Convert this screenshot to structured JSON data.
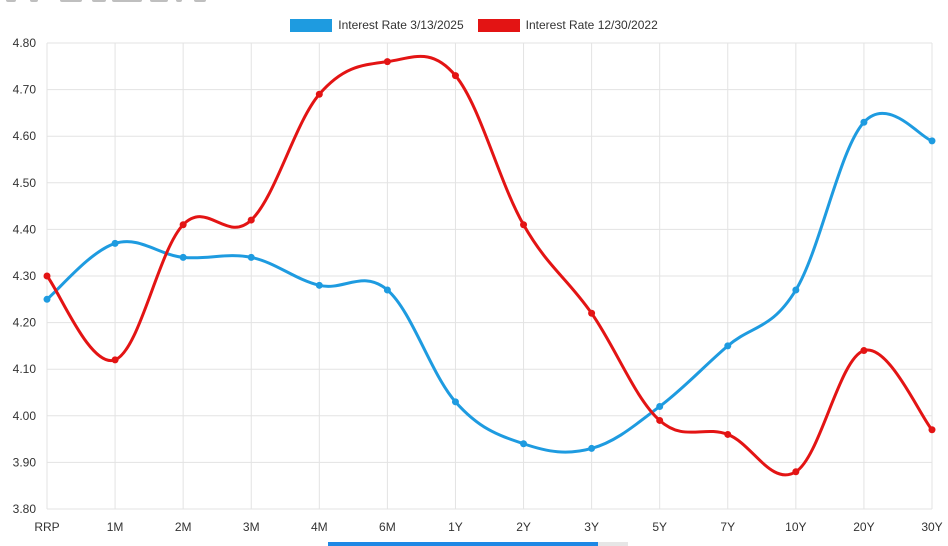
{
  "chart_data": {
    "type": "line",
    "categories": [
      "RRP",
      "1M",
      "2M",
      "3M",
      "4M",
      "6M",
      "1Y",
      "2Y",
      "3Y",
      "5Y",
      "7Y",
      "10Y",
      "20Y",
      "30Y"
    ],
    "series": [
      {
        "name": "Interest Rate 3/13/2025",
        "color": "#1e9be0",
        "values": [
          4.25,
          4.37,
          4.34,
          4.34,
          4.28,
          4.27,
          4.03,
          3.94,
          3.93,
          4.02,
          4.15,
          4.27,
          4.63,
          4.59
        ]
      },
      {
        "name": "Interest Rate 12/30/2022",
        "color": "#e31414",
        "values": [
          4.3,
          4.12,
          4.41,
          4.42,
          4.69,
          4.76,
          4.73,
          4.41,
          4.22,
          3.99,
          3.96,
          3.88,
          4.14,
          3.97
        ]
      }
    ],
    "ylim": [
      3.8,
      4.8
    ],
    "yticks": [
      "3.80",
      "3.90",
      "4.00",
      "4.10",
      "4.20",
      "4.30",
      "4.40",
      "4.50",
      "4.60",
      "4.70",
      "4.80"
    ],
    "grid": true,
    "legend_position": "top-center"
  }
}
